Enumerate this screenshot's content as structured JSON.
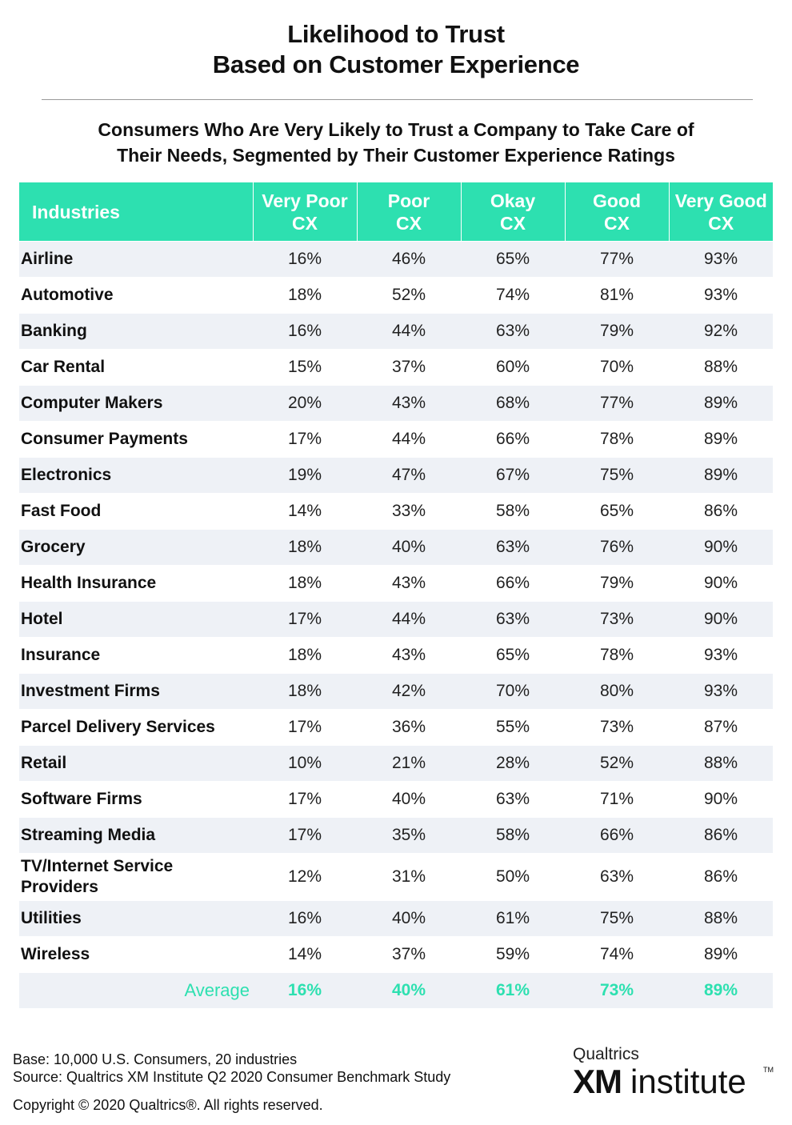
{
  "chart_data": {
    "type": "table",
    "title": [
      "Likelihood to Trust",
      "Based on Customer Experience"
    ],
    "subtitle": [
      "Consumers Who Are Very Likely to Trust a Company to Take Care of",
      "Their Needs, Segmented by Their Customer Experience Ratings"
    ],
    "columns": [
      [
        "Industries"
      ],
      [
        "Very Poor",
        "CX"
      ],
      [
        "Poor",
        "CX"
      ],
      [
        "Okay",
        "CX"
      ],
      [
        "Good",
        "CX"
      ],
      [
        "Very Good",
        "CX"
      ]
    ],
    "rows": [
      {
        "industry": [
          "Airline"
        ],
        "values": [
          "16%",
          "46%",
          "65%",
          "77%",
          "93%"
        ]
      },
      {
        "industry": [
          "Automotive"
        ],
        "values": [
          "18%",
          "52%",
          "74%",
          "81%",
          "93%"
        ]
      },
      {
        "industry": [
          "Banking"
        ],
        "values": [
          "16%",
          "44%",
          "63%",
          "79%",
          "92%"
        ]
      },
      {
        "industry": [
          "Car Rental"
        ],
        "values": [
          "15%",
          "37%",
          "60%",
          "70%",
          "88%"
        ]
      },
      {
        "industry": [
          "Computer Makers"
        ],
        "values": [
          "20%",
          "43%",
          "68%",
          "77%",
          "89%"
        ]
      },
      {
        "industry": [
          "Consumer Payments"
        ],
        "values": [
          "17%",
          "44%",
          "66%",
          "78%",
          "89%"
        ]
      },
      {
        "industry": [
          "Electronics"
        ],
        "values": [
          "19%",
          "47%",
          "67%",
          "75%",
          "89%"
        ]
      },
      {
        "industry": [
          "Fast Food"
        ],
        "values": [
          "14%",
          "33%",
          "58%",
          "65%",
          "86%"
        ]
      },
      {
        "industry": [
          "Grocery"
        ],
        "values": [
          "18%",
          "40%",
          "63%",
          "76%",
          "90%"
        ]
      },
      {
        "industry": [
          "Health Insurance"
        ],
        "values": [
          "18%",
          "43%",
          "66%",
          "79%",
          "90%"
        ]
      },
      {
        "industry": [
          "Hotel"
        ],
        "values": [
          "17%",
          "44%",
          "63%",
          "73%",
          "90%"
        ]
      },
      {
        "industry": [
          "Insurance"
        ],
        "values": [
          "18%",
          "43%",
          "65%",
          "78%",
          "93%"
        ]
      },
      {
        "industry": [
          "Investment Firms"
        ],
        "values": [
          "18%",
          "42%",
          "70%",
          "80%",
          "93%"
        ]
      },
      {
        "industry": [
          "Parcel Delivery Services"
        ],
        "values": [
          "17%",
          "36%",
          "55%",
          "73%",
          "87%"
        ]
      },
      {
        "industry": [
          "Retail"
        ],
        "values": [
          "10%",
          "21%",
          "28%",
          "52%",
          "88%"
        ]
      },
      {
        "industry": [
          "Software Firms"
        ],
        "values": [
          "17%",
          "40%",
          "63%",
          "71%",
          "90%"
        ]
      },
      {
        "industry": [
          "Streaming Media"
        ],
        "values": [
          "17%",
          "35%",
          "58%",
          "66%",
          "86%"
        ]
      },
      {
        "industry": [
          "TV/Internet Service",
          "Providers"
        ],
        "values": [
          "12%",
          "31%",
          "50%",
          "63%",
          "86%"
        ]
      },
      {
        "industry": [
          "Utilities"
        ],
        "values": [
          "16%",
          "40%",
          "61%",
          "75%",
          "88%"
        ]
      },
      {
        "industry": [
          "Wireless"
        ],
        "values": [
          "14%",
          "37%",
          "59%",
          "74%",
          "89%"
        ]
      }
    ],
    "average": {
      "label": "Average",
      "values": [
        "16%",
        "40%",
        "61%",
        "73%",
        "89%"
      ]
    },
    "colors": {
      "header_bg": "#2de0b0",
      "shade_bg": "#eef1f6",
      "average_text": "#2de0b0"
    }
  },
  "footer": {
    "base": "Base: 10,000 U.S. Consumers, 20 industries",
    "source": "Source: Qualtrics XM Institute Q2 2020 Consumer Benchmark Study",
    "copyright": "Copyright © 2020 Qualtrics®.  All rights reserved."
  },
  "logo": {
    "company": "Qualtrics",
    "xm": "XM",
    "institute": "institute",
    "tm": "TM"
  }
}
